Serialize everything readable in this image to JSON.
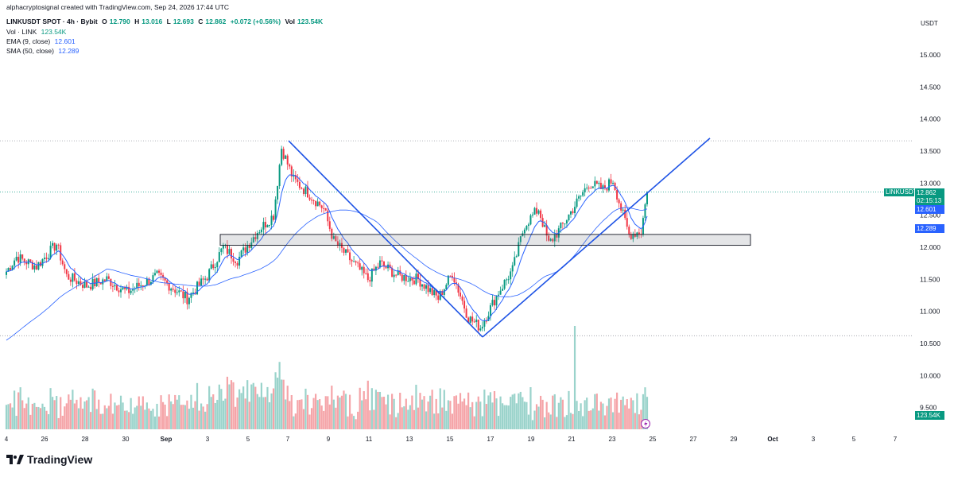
{
  "credit": "alphacryptosignal created with TradingView.com, Sep 24, 2026 17:44 UTC",
  "header": {
    "symbol": "LINKUSDT SPOT · 4h · Bybit",
    "o_label": "O",
    "o_value": "12.790",
    "h_label": "H",
    "h_value": "13.016",
    "l_label": "L",
    "l_value": "12.693",
    "c_label": "C",
    "c_value": "12.862",
    "change": "+0.072 (+0.56%)",
    "vol_label": "Vol",
    "vol_value": "123.54K"
  },
  "indicators": [
    {
      "label": "Vol · LINK",
      "value": "123.54K"
    },
    {
      "label": "EMA (9, close)",
      "value": "12.601"
    },
    {
      "label": "SMA (50, close)",
      "value": "12.289"
    }
  ],
  "currency": "USDT",
  "last_price": {
    "symbol": "LINKUSDT",
    "price": "12.862",
    "countdown": "02:15:13"
  },
  "ema_tag": "12.601",
  "sma_tag": "12.289",
  "volume_tag": "123.54K",
  "logo_text": "TradingView",
  "colors": {
    "up": "#089981",
    "down": "#f23645",
    "up_vol": "#9ad3cb",
    "down_vol": "#f5a4a8",
    "line": "#2962ff"
  },
  "chart_data": {
    "type": "candlestick",
    "title": "LINKUSDT SPOT · 4h · Bybit",
    "y_ticks": [
      "15.000",
      "14.500",
      "14.000",
      "13.500",
      "13.000",
      "12.500",
      "12.000",
      "11.500",
      "11.000",
      "10.500",
      "10.000",
      "9.500"
    ],
    "ylim": [
      9.3,
      15.3
    ],
    "x_ticks": [
      "4",
      "26",
      "28",
      "30",
      "Sep",
      "3",
      "5",
      "7",
      "9",
      "11",
      "13",
      "15",
      "17",
      "19",
      "21",
      "23",
      "25",
      "27",
      "29",
      "Oct",
      "3",
      "5",
      "7"
    ],
    "grid": false,
    "anchors": [
      {
        "t": 0,
        "price": 11.62
      },
      {
        "t": 5,
        "price": 11.85
      },
      {
        "t": 15,
        "price": 11.7
      },
      {
        "t": 25,
        "price": 12.05
      },
      {
        "t": 30,
        "price": 11.55
      },
      {
        "t": 40,
        "price": 11.4
      },
      {
        "t": 50,
        "price": 11.5
      },
      {
        "t": 60,
        "price": 11.3
      },
      {
        "t": 75,
        "price": 11.55
      },
      {
        "t": 90,
        "price": 11.2
      },
      {
        "t": 100,
        "price": 11.55
      },
      {
        "t": 108,
        "price": 12.0
      },
      {
        "t": 115,
        "price": 11.8
      },
      {
        "t": 125,
        "price": 12.25
      },
      {
        "t": 133,
        "price": 12.5
      },
      {
        "t": 137,
        "price": 13.55
      },
      {
        "t": 143,
        "price": 13.05
      },
      {
        "t": 150,
        "price": 12.85
      },
      {
        "t": 158,
        "price": 12.6
      },
      {
        "t": 163,
        "price": 12.1
      },
      {
        "t": 170,
        "price": 11.85
      },
      {
        "t": 180,
        "price": 11.5
      },
      {
        "t": 186,
        "price": 11.75
      },
      {
        "t": 195,
        "price": 11.55
      },
      {
        "t": 205,
        "price": 11.5
      },
      {
        "t": 215,
        "price": 11.2
      },
      {
        "t": 222,
        "price": 11.6
      },
      {
        "t": 230,
        "price": 10.9
      },
      {
        "t": 236,
        "price": 10.75
      },
      {
        "t": 245,
        "price": 11.3
      },
      {
        "t": 252,
        "price": 11.65
      },
      {
        "t": 258,
        "price": 12.35
      },
      {
        "t": 265,
        "price": 12.6
      },
      {
        "t": 270,
        "price": 12.05
      },
      {
        "t": 276,
        "price": 12.3
      },
      {
        "t": 283,
        "price": 12.65
      },
      {
        "t": 290,
        "price": 13.0
      },
      {
        "t": 297,
        "price": 12.9
      },
      {
        "t": 302,
        "price": 13.05
      },
      {
        "t": 306,
        "price": 12.6
      },
      {
        "t": 310,
        "price": 12.2
      },
      {
        "t": 316,
        "price": 12.25
      },
      {
        "t": 319,
        "price": 12.86
      }
    ],
    "resistance_levels": [
      13.66,
      10.62
    ],
    "last_price": 12.862,
    "zone": {
      "top": 12.2,
      "bottom": 12.03
    },
    "trendlines": [
      {
        "from": {
          "date": "Sep 7",
          "price": 13.66
        },
        "to": {
          "date": "Sep 16",
          "price": 10.6
        }
      },
      {
        "from": {
          "date": "Sep 16",
          "price": 10.6
        },
        "to": {
          "date": "Sep 27",
          "price": 13.7
        }
      }
    ],
    "series": [
      {
        "name": "EMA (9, close)",
        "last": 12.601
      },
      {
        "name": "SMA (50, close)",
        "last": 12.289
      },
      {
        "name": "Vol · LINK",
        "last": "123.54K"
      }
    ]
  }
}
